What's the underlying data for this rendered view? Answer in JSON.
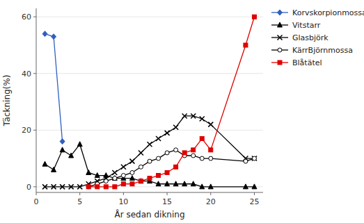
{
  "chart_data": {
    "type": "line",
    "xlabel": "År sedan dikning",
    "ylabel": "Täckning(%)",
    "xlim": [
      0,
      26
    ],
    "ylim": [
      -2,
      63
    ],
    "xticks": [
      0,
      5,
      10,
      15,
      20,
      25
    ],
    "yticks": [
      0,
      20,
      40,
      60
    ],
    "legend": "upper right",
    "series": [
      {
        "name": "Korvskorpionmossa",
        "color": "#3060c0",
        "marker": "diamond",
        "x": [
          1,
          2,
          3
        ],
        "values": [
          54,
          53,
          16
        ]
      },
      {
        "name": "Vitstarr",
        "color": "#000000",
        "marker": "triangle",
        "x": [
          1,
          2,
          3,
          4,
          5,
          6,
          7,
          8,
          9,
          10,
          11,
          12,
          13,
          14,
          15,
          16,
          17,
          18,
          19,
          20,
          24,
          25
        ],
        "values": [
          8,
          6,
          13,
          11,
          15,
          5,
          4,
          4,
          3,
          3,
          3,
          2,
          2,
          1,
          1,
          1,
          1,
          1,
          0,
          0,
          0,
          0
        ]
      },
      {
        "name": "Glasbjörk",
        "color": "#000000",
        "marker": "x",
        "x": [
          1,
          2,
          3,
          4,
          5,
          6,
          7,
          8,
          9,
          10,
          11,
          12,
          13,
          14,
          15,
          16,
          17,
          18,
          19,
          20,
          24,
          25
        ],
        "values": [
          0,
          0,
          0,
          0,
          0,
          1,
          2,
          3,
          5,
          7,
          9,
          12,
          15,
          17,
          19,
          21,
          25,
          25,
          24,
          22,
          10,
          10
        ]
      },
      {
        "name": "KärrBjörnmossa",
        "color": "#000000",
        "marker": "circle-open",
        "x": [
          6,
          7,
          8,
          9,
          10,
          11,
          12,
          13,
          14,
          15,
          16,
          17,
          18,
          19,
          20,
          24,
          25
        ],
        "values": [
          0,
          1,
          2,
          3,
          4,
          5,
          7,
          9,
          10,
          12,
          13,
          11,
          11,
          10,
          10,
          9,
          10
        ]
      },
      {
        "name": "Blåtätel",
        "color": "#e00000",
        "marker": "square",
        "x": [
          6,
          7,
          8,
          9,
          10,
          11,
          12,
          13,
          14,
          15,
          16,
          17,
          18,
          19,
          20,
          24,
          25
        ],
        "values": [
          0,
          0,
          0,
          0,
          1,
          1,
          2,
          3,
          4,
          5,
          7,
          12,
          13,
          17,
          13,
          50,
          60
        ]
      }
    ]
  }
}
